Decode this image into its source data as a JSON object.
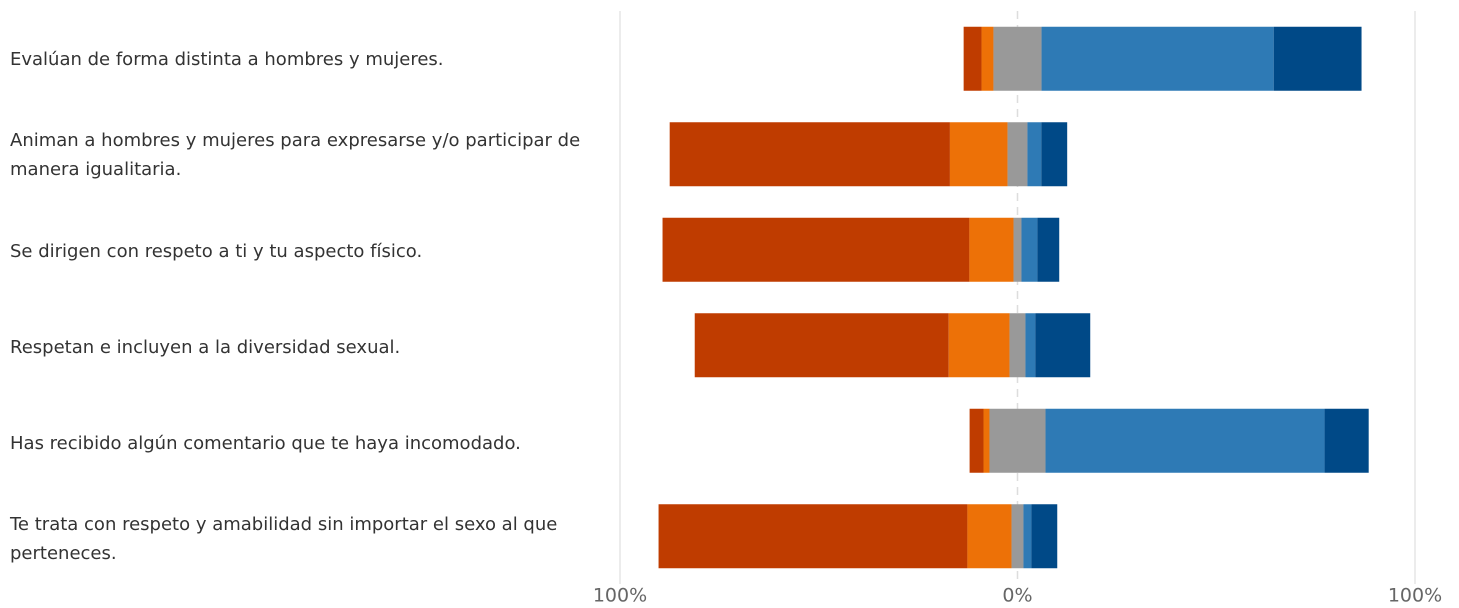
{
  "chart_data": {
    "type": "diverging-bar",
    "categories": [
      "Evalúan de forma distinta a hombres y mujeres.",
      "Animan a hombres y mujeres para expresarse y/o participar de manera igualitaria.",
      "Se dirigen con respeto a ti y tu aspecto físico.",
      "Respetan e incluyen a la diversidad sexual.",
      "Has recibido algún comentario que te haya incomodado.",
      "Te trata con respeto y amabilidad sin importar el sexo al que perteneces."
    ],
    "series": [
      {
        "color": "#bf3c00",
        "values": [
          4.5,
          70.5,
          77.2,
          63.9,
          3.5,
          77.7
        ]
      },
      {
        "color": "#ed7107",
        "values": [
          3.0,
          14.5,
          11.1,
          15.3,
          1.5,
          11.1
        ]
      },
      {
        "color": "#999999",
        "values": [
          12.1,
          5.0,
          2.0,
          4.0,
          14.1,
          3.0
        ]
      },
      {
        "color": "#2e7ab5",
        "values": [
          58.4,
          3.5,
          4.0,
          2.5,
          70.2,
          2.0
        ]
      },
      {
        "color": "#004987",
        "values": [
          22.1,
          6.5,
          5.5,
          13.8,
          11.1,
          6.5
        ]
      }
    ],
    "neutral_series": 2,
    "xlim": [
      -100,
      100
    ],
    "xticks": [
      {
        "value": -100,
        "label": "100%"
      },
      {
        "value": 0,
        "label": "0%"
      },
      {
        "value": 100,
        "label": "100%"
      }
    ],
    "grid": true
  }
}
